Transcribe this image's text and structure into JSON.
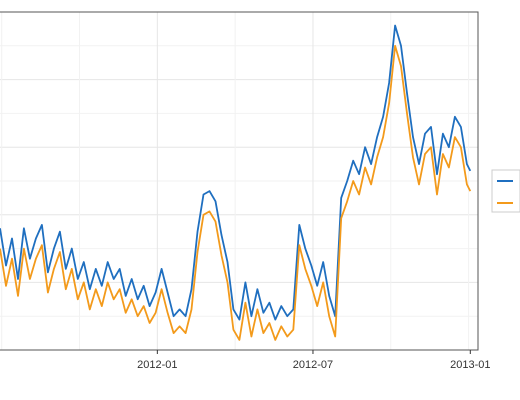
{
  "chart_data": {
    "type": "line",
    "title": "",
    "xlabel": "",
    "ylabel": "",
    "x_type": "date",
    "xlim": [
      "2011-07-01",
      "2013-01-10"
    ],
    "ylim": [
      0,
      1
    ],
    "x_ticks": [
      {
        "date": "2012-01-01",
        "label": "2012-01"
      },
      {
        "date": "2012-07-01",
        "label": "2012-07"
      },
      {
        "date": "2013-01-01",
        "label": "2013-01"
      }
    ],
    "grid": true,
    "legend_position": "right",
    "note": "Y axis tick labels and legend text are cropped out of the screenshot; values below are relative plot height (0 = bottom, 1 = top of plot panel).",
    "series": [
      {
        "color": "#1f6fc0",
        "points": [
          [
            "2011-07-01",
            0.36
          ],
          [
            "2011-07-08",
            0.25
          ],
          [
            "2011-07-15",
            0.33
          ],
          [
            "2011-07-22",
            0.21
          ],
          [
            "2011-07-29",
            0.36
          ],
          [
            "2011-08-05",
            0.27
          ],
          [
            "2011-08-12",
            0.33
          ],
          [
            "2011-08-19",
            0.37
          ],
          [
            "2011-08-26",
            0.23
          ],
          [
            "2011-09-02",
            0.3
          ],
          [
            "2011-09-09",
            0.35
          ],
          [
            "2011-09-16",
            0.24
          ],
          [
            "2011-09-23",
            0.3
          ],
          [
            "2011-09-30",
            0.21
          ],
          [
            "2011-10-07",
            0.26
          ],
          [
            "2011-10-14",
            0.18
          ],
          [
            "2011-10-21",
            0.24
          ],
          [
            "2011-10-28",
            0.19
          ],
          [
            "2011-11-04",
            0.26
          ],
          [
            "2011-11-11",
            0.21
          ],
          [
            "2011-11-18",
            0.24
          ],
          [
            "2011-11-25",
            0.16
          ],
          [
            "2011-12-02",
            0.21
          ],
          [
            "2011-12-09",
            0.15
          ],
          [
            "2011-12-16",
            0.19
          ],
          [
            "2011-12-23",
            0.13
          ],
          [
            "2011-12-30",
            0.17
          ],
          [
            "2012-01-06",
            0.24
          ],
          [
            "2012-01-13",
            0.17
          ],
          [
            "2012-01-20",
            0.1
          ],
          [
            "2012-01-27",
            0.12
          ],
          [
            "2012-02-03",
            0.1
          ],
          [
            "2012-02-10",
            0.18
          ],
          [
            "2012-02-17",
            0.35
          ],
          [
            "2012-02-24",
            0.46
          ],
          [
            "2012-03-02",
            0.47
          ],
          [
            "2012-03-09",
            0.44
          ],
          [
            "2012-03-16",
            0.34
          ],
          [
            "2012-03-23",
            0.26
          ],
          [
            "2012-03-30",
            0.12
          ],
          [
            "2012-04-06",
            0.09
          ],
          [
            "2012-04-13",
            0.2
          ],
          [
            "2012-04-20",
            0.1
          ],
          [
            "2012-04-27",
            0.18
          ],
          [
            "2012-05-04",
            0.11
          ],
          [
            "2012-05-11",
            0.14
          ],
          [
            "2012-05-18",
            0.09
          ],
          [
            "2012-05-25",
            0.13
          ],
          [
            "2012-06-01",
            0.1
          ],
          [
            "2012-06-08",
            0.12
          ],
          [
            "2012-06-15",
            0.37
          ],
          [
            "2012-06-22",
            0.3
          ],
          [
            "2012-06-29",
            0.25
          ],
          [
            "2012-07-06",
            0.19
          ],
          [
            "2012-07-13",
            0.26
          ],
          [
            "2012-07-20",
            0.16
          ],
          [
            "2012-07-27",
            0.1
          ],
          [
            "2012-08-03",
            0.45
          ],
          [
            "2012-08-10",
            0.5
          ],
          [
            "2012-08-17",
            0.56
          ],
          [
            "2012-08-24",
            0.52
          ],
          [
            "2012-08-31",
            0.6
          ],
          [
            "2012-09-07",
            0.55
          ],
          [
            "2012-09-14",
            0.63
          ],
          [
            "2012-09-21",
            0.69
          ],
          [
            "2012-09-28",
            0.79
          ],
          [
            "2012-10-05",
            0.96
          ],
          [
            "2012-10-12",
            0.9
          ],
          [
            "2012-10-19",
            0.76
          ],
          [
            "2012-10-26",
            0.63
          ],
          [
            "2012-11-02",
            0.55
          ],
          [
            "2012-11-09",
            0.64
          ],
          [
            "2012-11-16",
            0.66
          ],
          [
            "2012-11-23",
            0.52
          ],
          [
            "2012-11-30",
            0.64
          ],
          [
            "2012-12-07",
            0.6
          ],
          [
            "2012-12-14",
            0.69
          ],
          [
            "2012-12-21",
            0.66
          ],
          [
            "2012-12-28",
            0.55
          ],
          [
            "2013-01-01",
            0.53
          ]
        ]
      },
      {
        "color": "#f39a1b",
        "points": [
          [
            "2011-07-01",
            0.3
          ],
          [
            "2011-07-08",
            0.19
          ],
          [
            "2011-07-15",
            0.27
          ],
          [
            "2011-07-22",
            0.16
          ],
          [
            "2011-07-29",
            0.3
          ],
          [
            "2011-08-05",
            0.21
          ],
          [
            "2011-08-12",
            0.27
          ],
          [
            "2011-08-19",
            0.31
          ],
          [
            "2011-08-26",
            0.17
          ],
          [
            "2011-09-02",
            0.24
          ],
          [
            "2011-09-09",
            0.29
          ],
          [
            "2011-09-16",
            0.18
          ],
          [
            "2011-09-23",
            0.24
          ],
          [
            "2011-09-30",
            0.15
          ],
          [
            "2011-10-07",
            0.2
          ],
          [
            "2011-10-14",
            0.12
          ],
          [
            "2011-10-21",
            0.18
          ],
          [
            "2011-10-28",
            0.13
          ],
          [
            "2011-11-04",
            0.2
          ],
          [
            "2011-11-11",
            0.15
          ],
          [
            "2011-11-18",
            0.18
          ],
          [
            "2011-11-25",
            0.11
          ],
          [
            "2011-12-02",
            0.15
          ],
          [
            "2011-12-09",
            0.1
          ],
          [
            "2011-12-16",
            0.13
          ],
          [
            "2011-12-23",
            0.08
          ],
          [
            "2011-12-30",
            0.11
          ],
          [
            "2012-01-06",
            0.18
          ],
          [
            "2012-01-13",
            0.11
          ],
          [
            "2012-01-20",
            0.05
          ],
          [
            "2012-01-27",
            0.07
          ],
          [
            "2012-02-03",
            0.05
          ],
          [
            "2012-02-10",
            0.12
          ],
          [
            "2012-02-17",
            0.29
          ],
          [
            "2012-02-24",
            0.4
          ],
          [
            "2012-03-02",
            0.41
          ],
          [
            "2012-03-09",
            0.38
          ],
          [
            "2012-03-16",
            0.28
          ],
          [
            "2012-03-23",
            0.2
          ],
          [
            "2012-03-30",
            0.06
          ],
          [
            "2012-04-06",
            0.03
          ],
          [
            "2012-04-13",
            0.14
          ],
          [
            "2012-04-20",
            0.04
          ],
          [
            "2012-04-27",
            0.12
          ],
          [
            "2012-05-04",
            0.05
          ],
          [
            "2012-05-11",
            0.08
          ],
          [
            "2012-05-18",
            0.03
          ],
          [
            "2012-05-25",
            0.07
          ],
          [
            "2012-06-01",
            0.04
          ],
          [
            "2012-06-08",
            0.06
          ],
          [
            "2012-06-15",
            0.31
          ],
          [
            "2012-06-22",
            0.24
          ],
          [
            "2012-06-29",
            0.19
          ],
          [
            "2012-07-06",
            0.13
          ],
          [
            "2012-07-13",
            0.2
          ],
          [
            "2012-07-20",
            0.1
          ],
          [
            "2012-07-27",
            0.04
          ],
          [
            "2012-08-03",
            0.39
          ],
          [
            "2012-08-10",
            0.44
          ],
          [
            "2012-08-17",
            0.5
          ],
          [
            "2012-08-24",
            0.46
          ],
          [
            "2012-08-31",
            0.54
          ],
          [
            "2012-09-07",
            0.49
          ],
          [
            "2012-09-14",
            0.57
          ],
          [
            "2012-09-21",
            0.63
          ],
          [
            "2012-09-28",
            0.73
          ],
          [
            "2012-10-05",
            0.9
          ],
          [
            "2012-10-12",
            0.84
          ],
          [
            "2012-10-19",
            0.7
          ],
          [
            "2012-10-26",
            0.57
          ],
          [
            "2012-11-02",
            0.49
          ],
          [
            "2012-11-09",
            0.58
          ],
          [
            "2012-11-16",
            0.6
          ],
          [
            "2012-11-23",
            0.46
          ],
          [
            "2012-11-30",
            0.58
          ],
          [
            "2012-12-07",
            0.54
          ],
          [
            "2012-12-14",
            0.63
          ],
          [
            "2012-12-21",
            0.6
          ],
          [
            "2012-12-28",
            0.49
          ],
          [
            "2013-01-01",
            0.47
          ]
        ]
      }
    ]
  }
}
